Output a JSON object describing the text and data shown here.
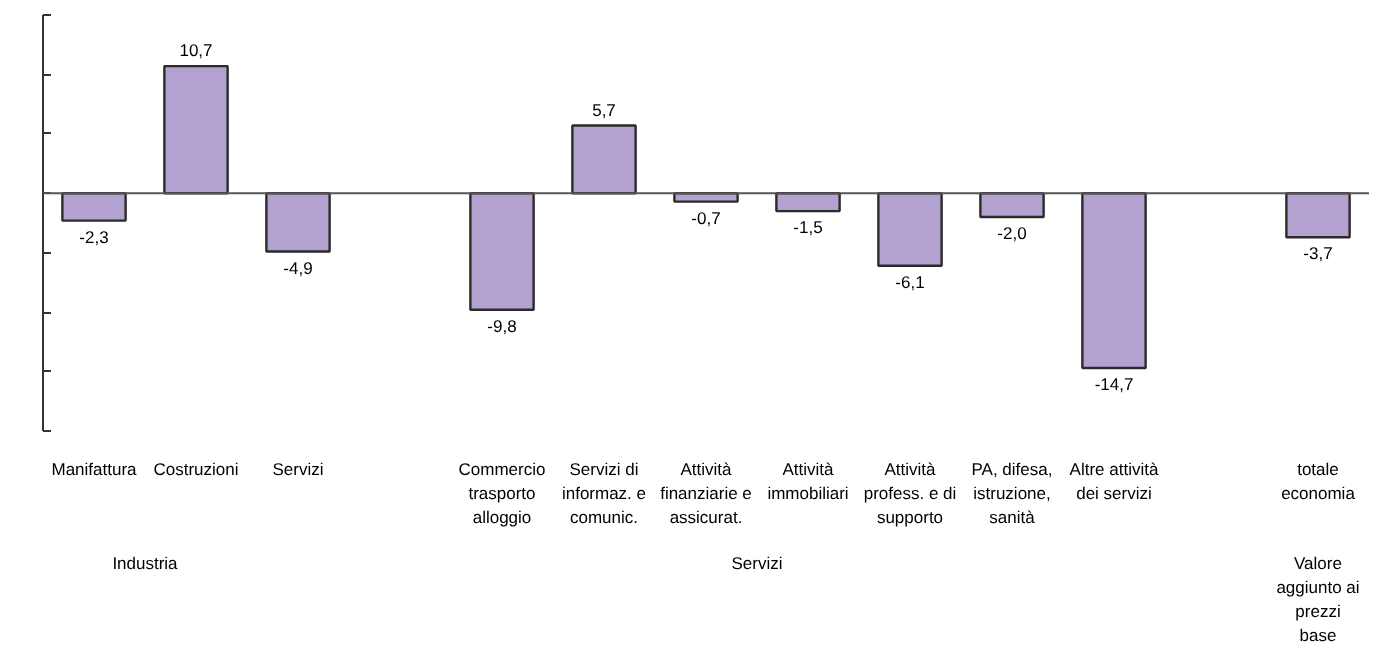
{
  "chart_data": {
    "type": "bar",
    "categories": [
      "Manifattura",
      "Costruzioni",
      "Servizi",
      null,
      "Commercio\ntrasporto\nalloggio",
      "Servizi di\ninformaz. e\ncomunic.",
      "Attività\nfinanziarie e\nassicurat.",
      "Attività\nimmobiliari",
      "Attività\nprofess. e di\nsupporto",
      "PA, difesa,\nistruzione,\nsanità",
      "Altre attività\ndei servizi",
      null,
      "totale\neconomia"
    ],
    "values": [
      -2.3,
      10.7,
      -4.9,
      null,
      -9.8,
      5.7,
      -0.7,
      -1.5,
      -6.1,
      -2.0,
      -14.7,
      null,
      -3.7
    ],
    "value_labels": [
      "-2,3",
      "10,7",
      "-4,9",
      null,
      "-9,8",
      "5,7",
      "-0,7",
      "-1,5",
      "-6,1",
      "-2,0",
      "-14,7",
      null,
      "-3,7"
    ],
    "color": "#b3a2cf",
    "ylim": [
      -20,
      15
    ],
    "yticks": [
      {
        "value": -20,
        "label": null
      },
      {
        "value": -15,
        "label": null
      },
      {
        "value": -10,
        "label": null
      },
      {
        "value": -5,
        "label": null
      },
      {
        "value": 0,
        "label": null
      },
      {
        "value": 5,
        "label": null
      },
      {
        "value": 10,
        "label": null
      },
      {
        "value": 15,
        "label": null
      }
    ],
    "tick_labels": "x",
    "grid": false,
    "annotations": [
      "Industria",
      "Servizi",
      "Valore\naggiunto ai\nprezzi\nbase"
    ]
  }
}
